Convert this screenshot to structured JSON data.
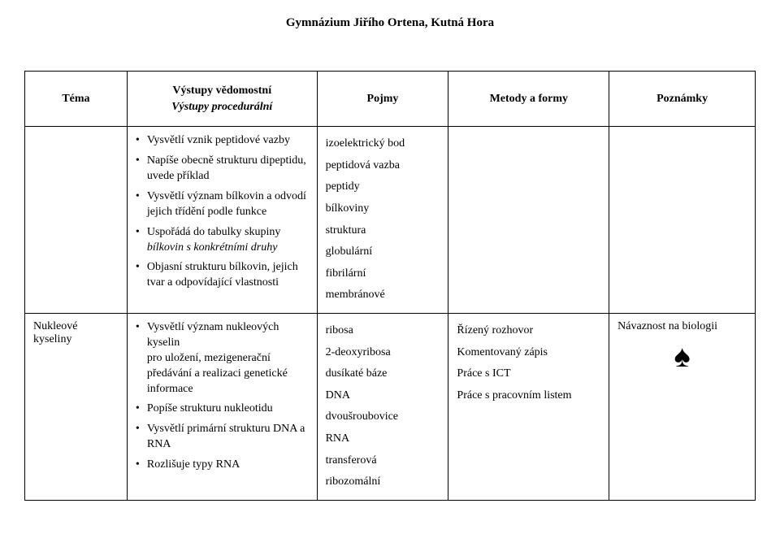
{
  "page_title": "Gymnázium Jiřího Ortena, Kutná Hora",
  "headers": {
    "tema": "Téma",
    "vystupy_line1": "Výstupy vědomostní",
    "vystupy_line2": "Výstupy procedurální",
    "pojmy": "Pojmy",
    "metody": "Metody a formy",
    "poznamky": "Poznámky"
  },
  "row1": {
    "tema": "",
    "vystupy": [
      {
        "text": "Vysvětlí vznik peptidové vazby"
      },
      {
        "text": "Napíše obecně strukturu dipeptidu, uvede příklad"
      },
      {
        "text": "Vysvětlí význam bílkovin a odvodí jejich třídění podle funkce"
      },
      {
        "text": "Uspořádá do tabulky skupiny ",
        "italic_tail": "bílkovin s konkrétními druhy"
      },
      {
        "text": "Objasní strukturu bílkovin, jejich tvar a odpovídající vlastnosti"
      }
    ],
    "pojmy": [
      "izoelektrický bod",
      "peptidová vazba",
      "peptidy",
      "bílkoviny",
      "struktura",
      "globulární",
      "fibrilární",
      "membránové"
    ],
    "metody": "",
    "poznamky": ""
  },
  "row2": {
    "tema": "Nukleové kyseliny",
    "vystupy": [
      {
        "text": "Vysvětlí význam nukleových kyselin",
        "sub": "pro uložení, mezigenerační předávání a realizaci genetické informace"
      },
      {
        "text": "Popíše strukturu nukleotidu"
      },
      {
        "text": "Vysvětlí primární strukturu DNA a RNA"
      },
      {
        "text": "Rozlišuje typy RNA"
      }
    ],
    "pojmy": [
      "ribosa",
      "2-deoxyribosa",
      "dusíkaté báze",
      "DNA",
      "dvoušroubovice",
      "RNA",
      "transferová",
      "ribozomální"
    ],
    "metody": [
      "Řízený rozhovor",
      "Komentovaný zápis",
      "Práce s ICT",
      "Práce s pracovním listem"
    ],
    "poznamky": "Návaznost na biologii",
    "spade": "♠"
  }
}
